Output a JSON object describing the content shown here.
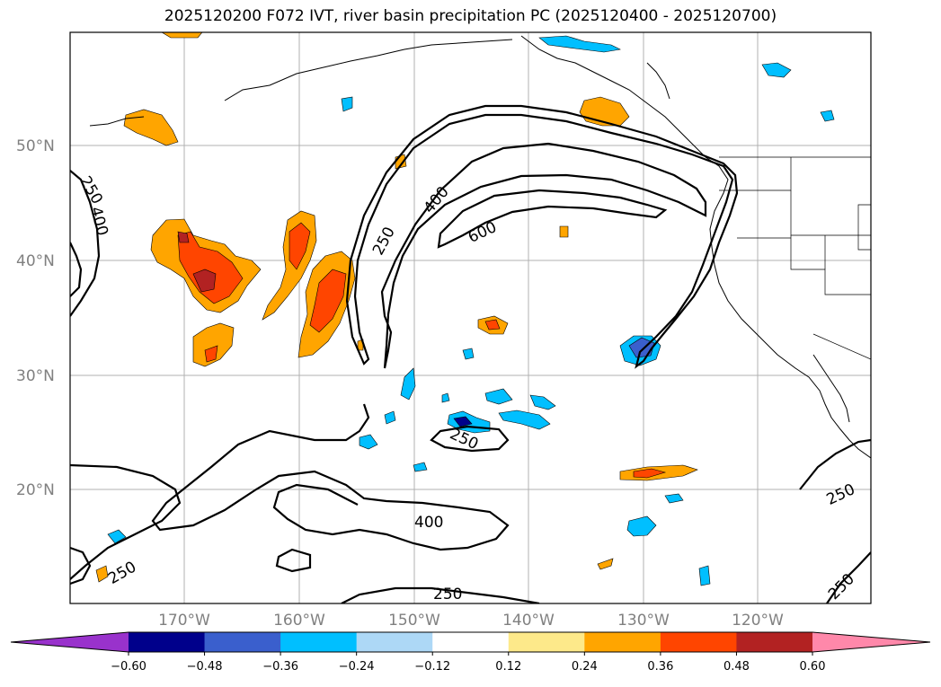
{
  "title": "2025120200 F072 IVT, river basin precipitation PC (2025120400 - 2025120700)",
  "lat_labels": [
    "50°N",
    "40°N",
    "30°N",
    "20°N"
  ],
  "lon_labels": [
    "170°W",
    "160°W",
    "150°W",
    "140°W",
    "130°W",
    "120°W"
  ],
  "colorbar": {
    "ticks": [
      "−0.60",
      "−0.48",
      "−0.36",
      "−0.24",
      "−0.12",
      "0.12",
      "0.24",
      "0.36",
      "0.48",
      "0.60"
    ],
    "colors": [
      "#9932cc",
      "#00008b",
      "#3a5fcd",
      "#00bfff",
      "#add8f6",
      "#ffffff",
      "#fde98a",
      "#ffa500",
      "#ff4500",
      "#b22222",
      "#ff88aa"
    ]
  },
  "contour_labels": [
    "250",
    "400",
    "250",
    "400",
    "600",
    "250",
    "400",
    "250",
    "250",
    "250",
    "250"
  ],
  "colors": {
    "pos_low": "#ffa500",
    "pos_mid": "#ff4500",
    "pos_high": "#b22222",
    "neg_low": "#00bfff",
    "neg_mid": "#3a5fcd",
    "neg_high": "#00008b"
  }
}
